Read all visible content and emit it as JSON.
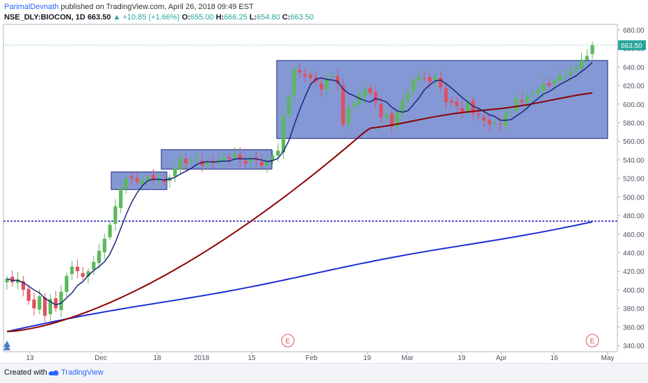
{
  "header": {
    "author": "ParimalDevnath",
    "published": "published on TradingView.com, April 26, 2018 09:49 EST"
  },
  "legend": {
    "symbol": "NSE_DLY:BIOCON, 1D",
    "last": "663.50",
    "change": "+10.85 (+1.66%)",
    "o_label": "O:",
    "o": "655.00",
    "h_label": "H:",
    "h": "666.25",
    "l_label": "L:",
    "l": "654.80",
    "c_label": "C:",
    "c": "663.50"
  },
  "footer": {
    "created": "Created with",
    "brand": "TradingView"
  },
  "colors": {
    "up": "#5cb85c",
    "down": "#e0505f",
    "sma_short": "#1a237e",
    "sma_mid": "#8b0000",
    "sma_long": "#1c2bd6",
    "box": "#5470c6",
    "hline": "#1a1ab8"
  },
  "chart_data": {
    "type": "candlestick",
    "y_axis": {
      "min": 340,
      "max": 680,
      "ticks": [
        340,
        360,
        380,
        400,
        420,
        440,
        460,
        480,
        500,
        520,
        540,
        560,
        580,
        600,
        620,
        640,
        660,
        680
      ],
      "side": "right"
    },
    "x_axis": {
      "labels": [
        "13",
        "Dec",
        "18",
        "2018",
        "15",
        "Feb",
        "19",
        "Mar",
        "19",
        "Apr",
        "16",
        "May"
      ]
    },
    "last_price_label": "663.50",
    "last_price": 663.5,
    "horizontal_line": 474,
    "earnings_markers": [
      "E",
      "E"
    ],
    "range_boxes": [
      {
        "top": 527,
        "bottom": 508
      },
      {
        "top": 551,
        "bottom": 530
      },
      {
        "top": 647,
        "bottom": 563
      }
    ],
    "closes": [
      412,
      408,
      411,
      400,
      388,
      380,
      393,
      372,
      390,
      380,
      398,
      415,
      425,
      420,
      414,
      420,
      430,
      442,
      455,
      470,
      490,
      510,
      520,
      520,
      516,
      518,
      522,
      518,
      520,
      516,
      521,
      531,
      542,
      536,
      539,
      541,
      534,
      537,
      538,
      540,
      542,
      541,
      547,
      540,
      536,
      542,
      540,
      534,
      538,
      545,
      550,
      588,
      608,
      638,
      634,
      630,
      628,
      624,
      616,
      628,
      630,
      622,
      578,
      596,
      601,
      610,
      616,
      612,
      602,
      586,
      588,
      576,
      592,
      604,
      612,
      626,
      630,
      628,
      624,
      630,
      618,
      602,
      602,
      598,
      592,
      602,
      590,
      588,
      582,
      578,
      580,
      578,
      590,
      592,
      606,
      602,
      608,
      612,
      616,
      622,
      620,
      626,
      631,
      630,
      636,
      640,
      648,
      652,
      663.5
    ]
  }
}
